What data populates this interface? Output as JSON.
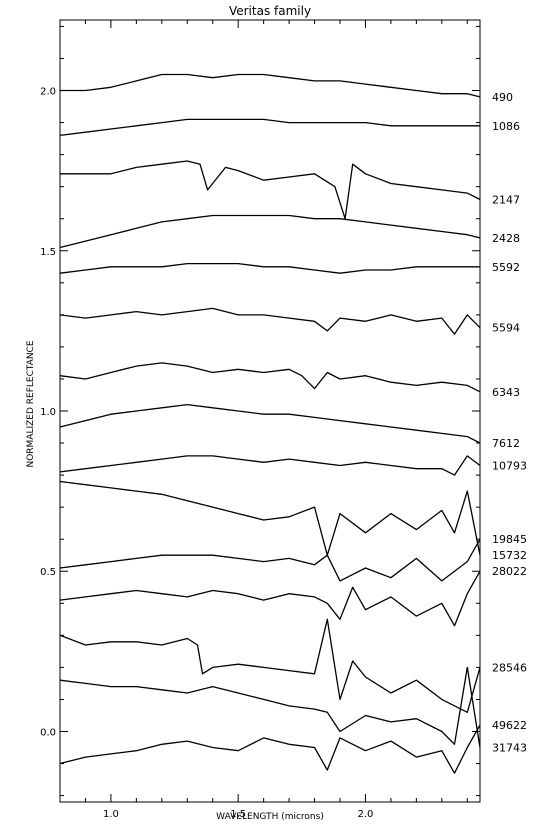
{
  "chart_data": {
    "type": "line",
    "title": "Veritas family",
    "xlabel": "WAVELENGTH (microns)",
    "ylabel": "NORMALIZED REFLECTANCE",
    "xlim": [
      0.8,
      2.45
    ],
    "ylim": [
      -0.22,
      2.22
    ],
    "xticks": [
      1.0,
      1.5,
      2.0
    ],
    "xtick_labels": [
      "1.0",
      "1.5",
      "2.0"
    ],
    "yticks": [
      0.0,
      0.5,
      1.0,
      1.5,
      2.0
    ],
    "ytick_labels": [
      "0.0",
      "0.5",
      "1.0",
      "1.5",
      "2.0"
    ],
    "grid": false,
    "legend": "labels at right end of each spectrum",
    "series": [
      {
        "name": "490",
        "x": [
          0.8,
          0.9,
          1.0,
          1.1,
          1.2,
          1.3,
          1.4,
          1.5,
          1.6,
          1.7,
          1.8,
          1.9,
          2.0,
          2.1,
          2.2,
          2.3,
          2.4,
          2.45
        ],
        "values": [
          2.0,
          2.0,
          2.01,
          2.03,
          2.05,
          2.05,
          2.04,
          2.05,
          2.05,
          2.04,
          2.03,
          2.03,
          2.02,
          2.01,
          2.0,
          1.99,
          1.99,
          1.98
        ]
      },
      {
        "name": "1086",
        "x": [
          0.8,
          0.9,
          1.0,
          1.1,
          1.2,
          1.3,
          1.4,
          1.5,
          1.6,
          1.7,
          1.8,
          1.9,
          2.0,
          2.1,
          2.2,
          2.3,
          2.4,
          2.45
        ],
        "values": [
          1.86,
          1.87,
          1.88,
          1.89,
          1.9,
          1.91,
          1.91,
          1.91,
          1.91,
          1.9,
          1.9,
          1.9,
          1.9,
          1.89,
          1.89,
          1.89,
          1.89,
          1.89
        ]
      },
      {
        "name": "2147",
        "x": [
          0.8,
          0.9,
          1.0,
          1.1,
          1.2,
          1.3,
          1.35,
          1.38,
          1.45,
          1.5,
          1.6,
          1.7,
          1.8,
          1.88,
          1.92,
          1.95,
          2.0,
          2.1,
          2.2,
          2.3,
          2.4,
          2.45
        ],
        "values": [
          1.74,
          1.74,
          1.74,
          1.76,
          1.77,
          1.78,
          1.77,
          1.69,
          1.76,
          1.75,
          1.72,
          1.73,
          1.74,
          1.7,
          1.6,
          1.77,
          1.74,
          1.71,
          1.7,
          1.69,
          1.68,
          1.66
        ]
      },
      {
        "name": "2428",
        "x": [
          0.8,
          0.9,
          1.0,
          1.1,
          1.2,
          1.3,
          1.4,
          1.5,
          1.6,
          1.7,
          1.8,
          1.9,
          2.0,
          2.1,
          2.2,
          2.3,
          2.4,
          2.45
        ],
        "values": [
          1.51,
          1.53,
          1.55,
          1.57,
          1.59,
          1.6,
          1.61,
          1.61,
          1.61,
          1.61,
          1.6,
          1.6,
          1.59,
          1.58,
          1.57,
          1.56,
          1.55,
          1.54
        ]
      },
      {
        "name": "5592",
        "x": [
          0.8,
          0.9,
          1.0,
          1.1,
          1.2,
          1.3,
          1.4,
          1.5,
          1.6,
          1.7,
          1.8,
          1.9,
          2.0,
          2.1,
          2.2,
          2.3,
          2.4,
          2.45
        ],
        "values": [
          1.43,
          1.44,
          1.45,
          1.45,
          1.45,
          1.46,
          1.46,
          1.46,
          1.45,
          1.45,
          1.44,
          1.43,
          1.44,
          1.44,
          1.45,
          1.45,
          1.45,
          1.45
        ]
      },
      {
        "name": "5594",
        "x": [
          0.8,
          0.9,
          1.0,
          1.1,
          1.2,
          1.3,
          1.4,
          1.5,
          1.6,
          1.7,
          1.8,
          1.85,
          1.9,
          2.0,
          2.1,
          2.2,
          2.3,
          2.35,
          2.4,
          2.45
        ],
        "values": [
          1.3,
          1.29,
          1.3,
          1.31,
          1.3,
          1.31,
          1.32,
          1.3,
          1.3,
          1.29,
          1.28,
          1.25,
          1.29,
          1.28,
          1.3,
          1.28,
          1.29,
          1.24,
          1.3,
          1.26
        ]
      },
      {
        "name": "6343",
        "x": [
          0.8,
          0.9,
          1.0,
          1.1,
          1.2,
          1.3,
          1.4,
          1.5,
          1.6,
          1.7,
          1.75,
          1.8,
          1.85,
          1.9,
          2.0,
          2.1,
          2.2,
          2.3,
          2.4,
          2.45
        ],
        "values": [
          1.11,
          1.1,
          1.12,
          1.14,
          1.15,
          1.14,
          1.12,
          1.13,
          1.12,
          1.13,
          1.11,
          1.07,
          1.12,
          1.1,
          1.11,
          1.09,
          1.08,
          1.09,
          1.08,
          1.06
        ]
      },
      {
        "name": "7612",
        "x": [
          0.8,
          0.9,
          1.0,
          1.1,
          1.2,
          1.3,
          1.4,
          1.5,
          1.6,
          1.7,
          1.8,
          1.9,
          2.0,
          2.1,
          2.2,
          2.3,
          2.4,
          2.45
        ],
        "values": [
          0.95,
          0.97,
          0.99,
          1.0,
          1.01,
          1.02,
          1.01,
          1.0,
          0.99,
          0.99,
          0.98,
          0.97,
          0.96,
          0.95,
          0.94,
          0.93,
          0.92,
          0.9
        ]
      },
      {
        "name": "10793",
        "x": [
          0.8,
          0.9,
          1.0,
          1.1,
          1.2,
          1.3,
          1.4,
          1.5,
          1.6,
          1.7,
          1.8,
          1.9,
          2.0,
          2.1,
          2.2,
          2.3,
          2.35,
          2.4,
          2.45
        ],
        "values": [
          0.81,
          0.82,
          0.83,
          0.84,
          0.85,
          0.86,
          0.86,
          0.85,
          0.84,
          0.85,
          0.84,
          0.83,
          0.84,
          0.83,
          0.82,
          0.82,
          0.8,
          0.86,
          0.83
        ]
      },
      {
        "name": "15732",
        "x": [
          0.8,
          0.9,
          1.0,
          1.1,
          1.2,
          1.3,
          1.4,
          1.5,
          1.6,
          1.7,
          1.8,
          1.85,
          1.9,
          2.0,
          2.1,
          2.2,
          2.3,
          2.35,
          2.4,
          2.45
        ],
        "values": [
          0.78,
          0.77,
          0.76,
          0.75,
          0.74,
          0.72,
          0.7,
          0.68,
          0.66,
          0.67,
          0.7,
          0.55,
          0.68,
          0.62,
          0.68,
          0.63,
          0.69,
          0.62,
          0.75,
          0.55
        ]
      },
      {
        "name": "19845",
        "x": [
          0.8,
          0.9,
          1.0,
          1.1,
          1.2,
          1.3,
          1.4,
          1.5,
          1.6,
          1.7,
          1.8,
          1.85,
          1.9,
          2.0,
          2.1,
          2.2,
          2.3,
          2.4,
          2.45
        ],
        "values": [
          0.51,
          0.52,
          0.53,
          0.54,
          0.55,
          0.55,
          0.55,
          0.54,
          0.53,
          0.54,
          0.52,
          0.55,
          0.47,
          0.51,
          0.48,
          0.54,
          0.47,
          0.53,
          0.6
        ]
      },
      {
        "name": "28022",
        "x": [
          0.8,
          0.9,
          1.0,
          1.1,
          1.2,
          1.3,
          1.4,
          1.5,
          1.6,
          1.7,
          1.8,
          1.85,
          1.9,
          1.95,
          2.0,
          2.1,
          2.2,
          2.3,
          2.35,
          2.4,
          2.45
        ],
        "values": [
          0.41,
          0.42,
          0.43,
          0.44,
          0.43,
          0.42,
          0.44,
          0.43,
          0.41,
          0.43,
          0.42,
          0.4,
          0.35,
          0.45,
          0.38,
          0.42,
          0.36,
          0.4,
          0.33,
          0.43,
          0.5
        ]
      },
      {
        "name": "28546",
        "x": [
          0.8,
          0.9,
          1.0,
          1.1,
          1.2,
          1.3,
          1.34,
          1.36,
          1.4,
          1.5,
          1.6,
          1.7,
          1.8,
          1.85,
          1.9,
          1.95,
          2.0,
          2.1,
          2.2,
          2.3,
          2.4,
          2.45
        ],
        "values": [
          0.3,
          0.27,
          0.28,
          0.28,
          0.27,
          0.29,
          0.27,
          0.18,
          0.2,
          0.21,
          0.2,
          0.19,
          0.18,
          0.35,
          0.1,
          0.22,
          0.17,
          0.12,
          0.16,
          0.1,
          0.06,
          0.2
        ]
      },
      {
        "name": "31743",
        "x": [
          0.8,
          0.9,
          1.0,
          1.1,
          1.2,
          1.3,
          1.4,
          1.5,
          1.6,
          1.7,
          1.8,
          1.85,
          1.9,
          2.0,
          2.1,
          2.2,
          2.3,
          2.35,
          2.4,
          2.45
        ],
        "values": [
          0.16,
          0.15,
          0.14,
          0.14,
          0.13,
          0.12,
          0.14,
          0.12,
          0.1,
          0.08,
          0.07,
          0.06,
          0.0,
          0.05,
          0.03,
          0.04,
          0.0,
          -0.04,
          0.2,
          -0.05
        ]
      },
      {
        "name": "49622",
        "x": [
          0.8,
          0.9,
          1.0,
          1.1,
          1.2,
          1.3,
          1.4,
          1.5,
          1.6,
          1.7,
          1.8,
          1.85,
          1.9,
          2.0,
          2.1,
          2.2,
          2.3,
          2.35,
          2.4,
          2.45
        ],
        "values": [
          -0.1,
          -0.08,
          -0.07,
          -0.06,
          -0.04,
          -0.03,
          -0.05,
          -0.06,
          -0.02,
          -0.04,
          -0.05,
          -0.12,
          -0.02,
          -0.06,
          -0.03,
          -0.08,
          -0.06,
          -0.13,
          -0.05,
          0.02
        ]
      }
    ]
  }
}
